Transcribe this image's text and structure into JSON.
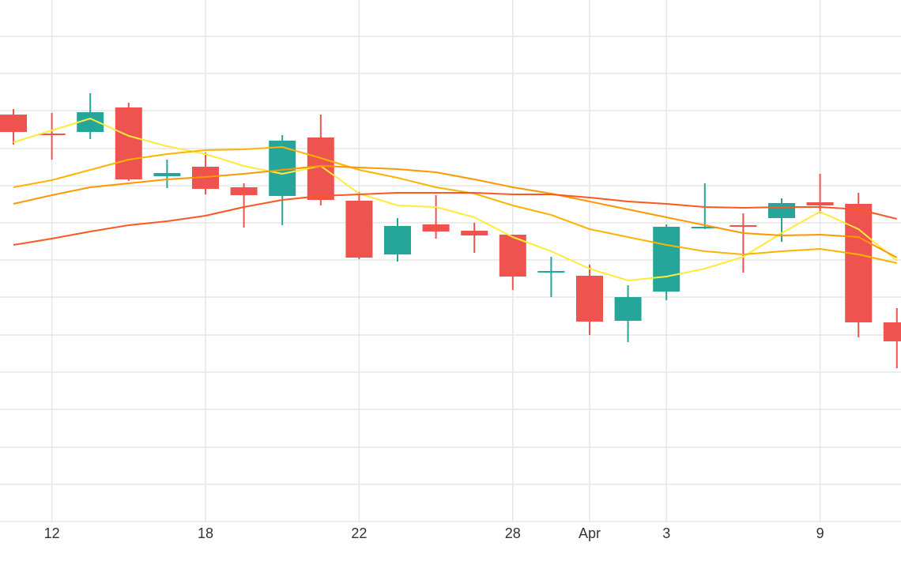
{
  "chart_data": {
    "type": "candlestick",
    "categories": [
      null,
      "12",
      null,
      null,
      null,
      "18",
      null,
      null,
      null,
      "22",
      null,
      null,
      null,
      "28",
      null,
      "Apr",
      null,
      "3",
      null,
      null,
      null,
      "9",
      null,
      null
    ],
    "open": [
      515,
      491,
      493,
      524,
      437,
      449,
      423,
      412,
      486,
      406,
      338,
      376,
      368,
      363,
      315,
      311,
      254,
      291,
      371,
      375,
      384,
      404,
      402,
      252
    ],
    "high": [
      522,
      517,
      542,
      530,
      458,
      467,
      428,
      489,
      515,
      417,
      384,
      413,
      378,
      363,
      335,
      325,
      299,
      376,
      428,
      390,
      409,
      440,
      416,
      270
    ],
    "low": [
      477,
      458,
      484,
      431,
      422,
      414,
      372,
      375,
      400,
      332,
      329,
      358,
      340,
      293,
      284,
      236,
      227,
      280,
      370,
      315,
      354,
      390,
      233,
      194
    ],
    "close": [
      493,
      489,
      518,
      433,
      441,
      421,
      413,
      482,
      407,
      334,
      374,
      367,
      362,
      310,
      317,
      253,
      284,
      373,
      373,
      373,
      403,
      400,
      252,
      228
    ],
    "up_color": "#26a69a",
    "down_color": "#ef5350",
    "moving_averages": [
      {
        "color": "#ffeb3b",
        "values": [
          480,
          495,
          510,
          488,
          475,
          465,
          450,
          440,
          450,
          415,
          400,
          398,
          385,
          360,
          342,
          320,
          305,
          310,
          320,
          335,
          365,
          392,
          370,
          330
        ]
      },
      {
        "color": "#ffb300",
        "values": [
          423,
          432,
          445,
          458,
          465,
          470,
          471,
          474,
          460,
          445,
          435,
          423,
          415,
          400,
          388,
          370,
          360,
          350,
          342,
          338,
          342,
          345,
          338,
          327
        ]
      },
      {
        "color": "#ff9800",
        "values": [
          402,
          413,
          423,
          428,
          433,
          436,
          440,
          445,
          450,
          448,
          446,
          442,
          433,
          423,
          415,
          405,
          395,
          385,
          375,
          365,
          362,
          363,
          360,
          334
        ]
      },
      {
        "color": "#ff5722",
        "values": [
          350,
          358,
          367,
          375,
          380,
          387,
          398,
          407,
          412,
          414,
          416,
          416,
          416,
          414,
          414,
          410,
          405,
          402,
          398,
          397,
          398,
          398,
          395,
          383
        ]
      }
    ],
    "ylim": [
      0,
      660
    ],
    "ygrid": [
      47,
      94,
      142,
      189,
      236,
      284,
      331,
      378,
      425,
      472,
      520,
      567,
      614
    ],
    "grid": true
  }
}
